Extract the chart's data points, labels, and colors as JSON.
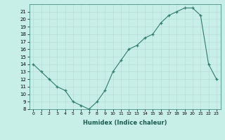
{
  "x": [
    0,
    1,
    2,
    3,
    4,
    5,
    6,
    7,
    8,
    9,
    10,
    11,
    12,
    13,
    14,
    15,
    16,
    17,
    18,
    19,
    20,
    21,
    22,
    23
  ],
  "y": [
    14,
    13,
    12,
    11,
    10.5,
    9,
    8.5,
    8,
    9,
    10.5,
    13,
    14.5,
    16,
    16.5,
    17.5,
    18,
    19.5,
    20.5,
    21,
    21.5,
    21.5,
    20.5,
    14,
    12
  ],
  "xlabel": "Humidex (Indice chaleur)",
  "line_color": "#2e7d6e",
  "bg_color": "#c8eee8",
  "grid_color": "#b8ddd6",
  "ylim": [
    8,
    22
  ],
  "xlim": [
    -0.5,
    23.5
  ],
  "yticks": [
    8,
    9,
    10,
    11,
    12,
    13,
    14,
    15,
    16,
    17,
    18,
    19,
    20,
    21
  ],
  "xticks": [
    0,
    1,
    2,
    3,
    4,
    5,
    6,
    7,
    8,
    9,
    10,
    11,
    12,
    13,
    14,
    15,
    16,
    17,
    18,
    19,
    20,
    21,
    22,
    23
  ]
}
